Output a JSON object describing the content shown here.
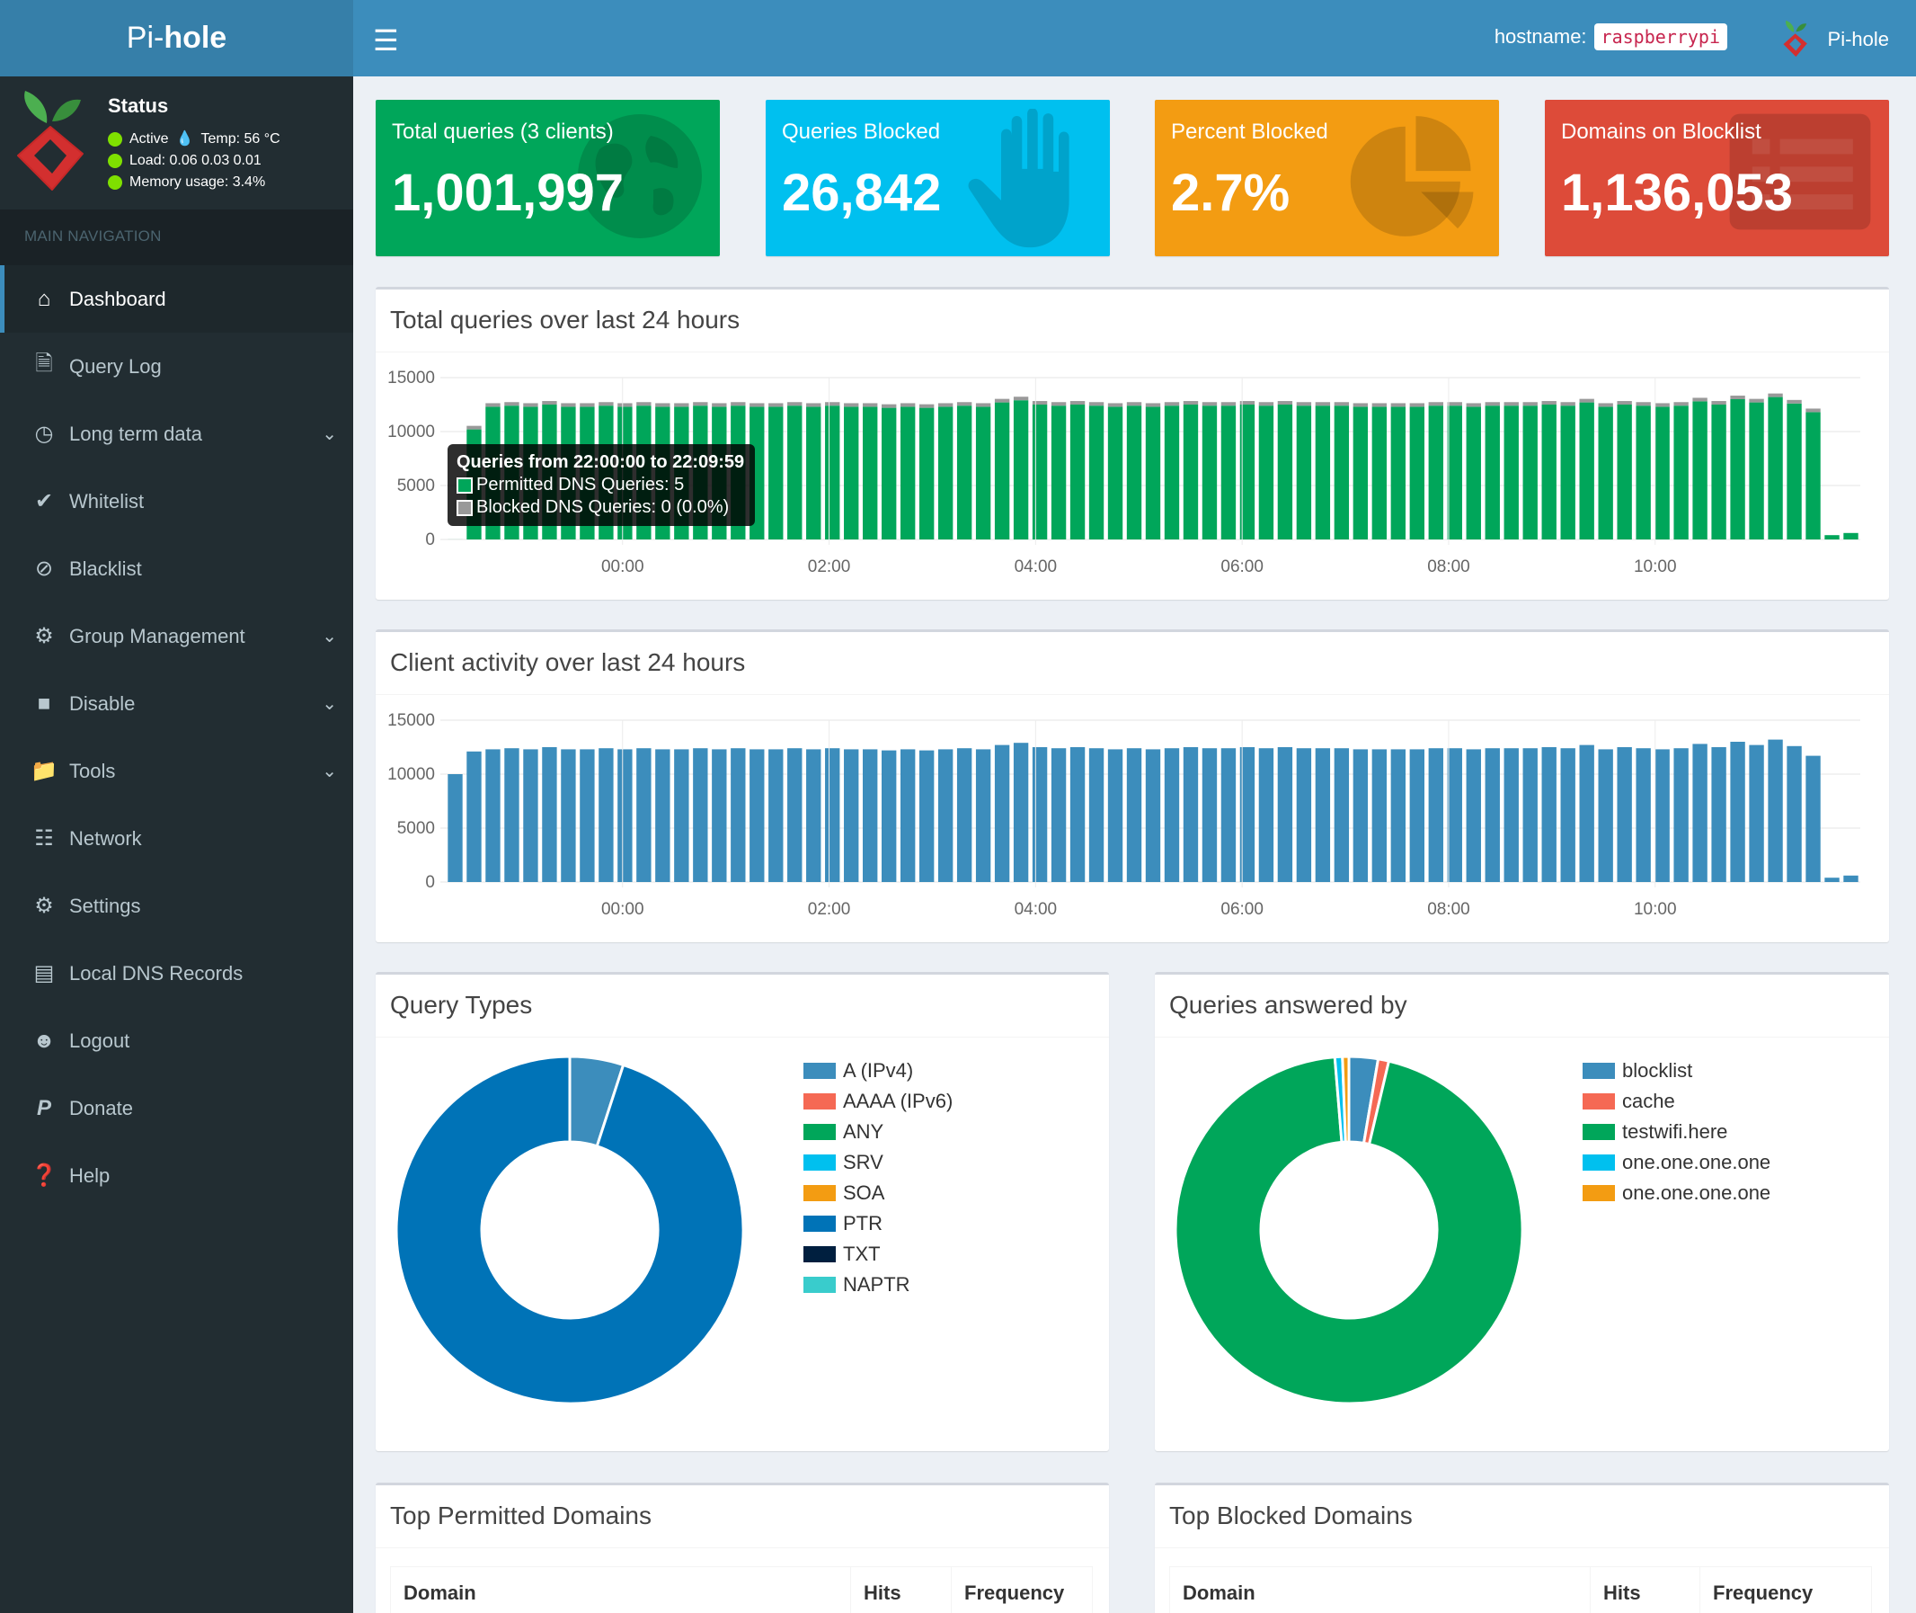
{
  "sidebar": {
    "logo_prefix": "Pi-",
    "logo_bold": "hole",
    "status": {
      "title": "Status",
      "active": "Active",
      "temp": "Temp: 56 °C",
      "load": "Load:  0.06  0.03  0.01",
      "memory": "Memory usage:  3.4%"
    },
    "nav_header": "MAIN NAVIGATION",
    "items": [
      {
        "label": "Dashboard",
        "icon": "home-icon"
      },
      {
        "label": "Query Log",
        "icon": "file-icon"
      },
      {
        "label": "Long term data",
        "icon": "clock-icon"
      },
      {
        "label": "Whitelist",
        "icon": "check-circle-icon"
      },
      {
        "label": "Blacklist",
        "icon": "ban-icon"
      },
      {
        "label": "Group Management",
        "icon": "users-cog-icon"
      },
      {
        "label": "Disable",
        "icon": "stop-icon"
      },
      {
        "label": "Tools",
        "icon": "folder-icon"
      },
      {
        "label": "Network",
        "icon": "network-icon"
      },
      {
        "label": "Settings",
        "icon": "cogs-icon"
      },
      {
        "label": "Local DNS Records",
        "icon": "address-book-icon"
      },
      {
        "label": "Logout",
        "icon": "user-times-icon"
      },
      {
        "label": "Donate",
        "icon": "paypal-icon"
      },
      {
        "label": "Help",
        "icon": "question-circle-icon"
      }
    ]
  },
  "header": {
    "hostname_label": "hostname:",
    "hostname_value": "raspberrypi",
    "brand": "Pi-hole"
  },
  "stats": {
    "total_queries": {
      "label": "Total queries (3 clients)",
      "value": "1,001,997",
      "color": "#00a65a"
    },
    "queries_blocked": {
      "label": "Queries Blocked",
      "value": "26,842",
      "color": "#00c0ef"
    },
    "percent_blocked": {
      "label": "Percent Blocked",
      "value": "2.7%",
      "color": "#f39c12"
    },
    "domains_blocklist": {
      "label": "Domains on Blocklist",
      "value": "1,136,053",
      "color": "#dd4b39"
    }
  },
  "charts": {
    "queries_title": "Total queries over last 24 hours",
    "clients_title": "Client activity over last 24 hours",
    "query_types_title": "Query Types",
    "answered_by_title": "Queries answered by"
  },
  "tooltip": {
    "title": "Queries from 22:00:00 to 22:09:59",
    "permitted": "Permitted DNS Queries: 5",
    "blocked": "Blocked DNS Queries: 0 (0.0%)"
  },
  "tables": {
    "permitted_title": "Top Permitted Domains",
    "blocked_title": "Top Blocked Domains",
    "col_domain": "Domain",
    "col_hits": "Hits",
    "col_frequency": "Frequency"
  },
  "chart_data": [
    {
      "type": "bar",
      "title": "Total queries over last 24 hours",
      "yticks": [
        "0",
        "5000",
        "10000",
        "15000"
      ],
      "ylim": [
        0,
        15000
      ],
      "xticks": [
        "00:00",
        "02:00",
        "04:00",
        "06:00",
        "08:00",
        "10:00"
      ],
      "series": [
        {
          "name": "Permitted DNS Queries",
          "color": "#00a65a",
          "values": [
            5,
            10200,
            12300,
            12400,
            12300,
            12500,
            12300,
            12300,
            12400,
            12300,
            12400,
            12300,
            12300,
            12400,
            12300,
            12400,
            12300,
            12300,
            12400,
            12300,
            12400,
            12300,
            12300,
            12200,
            12300,
            12200,
            12300,
            12400,
            12300,
            12700,
            12900,
            12500,
            12400,
            12500,
            12400,
            12300,
            12400,
            12300,
            12400,
            12500,
            12400,
            12400,
            12500,
            12400,
            12500,
            12400,
            12400,
            12400,
            12300,
            12300,
            12300,
            12300,
            12400,
            12400,
            12300,
            12400,
            12400,
            12400,
            12500,
            12400,
            12700,
            12300,
            12500,
            12400,
            12300,
            12400,
            12800,
            12500,
            13000,
            12700,
            13200,
            12600,
            11800,
            400,
            600
          ]
        },
        {
          "name": "Blocked DNS Queries",
          "color": "#999999",
          "values": [
            0,
            330,
            330,
            330,
            330,
            330,
            330,
            330,
            330,
            330,
            330,
            330,
            330,
            330,
            330,
            330,
            330,
            330,
            330,
            330,
            330,
            330,
            330,
            330,
            330,
            330,
            330,
            330,
            330,
            330,
            330,
            330,
            330,
            330,
            330,
            330,
            330,
            330,
            330,
            330,
            330,
            330,
            330,
            330,
            330,
            330,
            330,
            330,
            330,
            330,
            330,
            330,
            330,
            330,
            330,
            330,
            330,
            330,
            330,
            330,
            330,
            330,
            330,
            330,
            330,
            330,
            330,
            330,
            330,
            330,
            330,
            330,
            330,
            0,
            0
          ]
        }
      ]
    },
    {
      "type": "bar",
      "title": "Client activity over last 24 hours",
      "yticks": [
        "0",
        "5000",
        "10000",
        "15000"
      ],
      "ylim": [
        0,
        15000
      ],
      "xticks": [
        "00:00",
        "02:00",
        "04:00",
        "06:00",
        "08:00",
        "10:00"
      ],
      "series": [
        {
          "color": "#3c8dbc",
          "values": [
            10000,
            12100,
            12300,
            12400,
            12300,
            12500,
            12300,
            12300,
            12400,
            12300,
            12400,
            12300,
            12300,
            12400,
            12300,
            12400,
            12300,
            12300,
            12400,
            12300,
            12400,
            12300,
            12300,
            12200,
            12300,
            12200,
            12300,
            12400,
            12300,
            12700,
            12900,
            12500,
            12400,
            12500,
            12400,
            12300,
            12400,
            12300,
            12400,
            12500,
            12400,
            12400,
            12500,
            12400,
            12500,
            12400,
            12400,
            12400,
            12300,
            12300,
            12300,
            12300,
            12400,
            12400,
            12300,
            12400,
            12400,
            12400,
            12500,
            12400,
            12700,
            12300,
            12500,
            12400,
            12300,
            12400,
            12800,
            12500,
            13000,
            12700,
            13200,
            12600,
            11700,
            400,
            600
          ]
        }
      ]
    },
    {
      "type": "pie",
      "title": "Query Types",
      "categories": [
        "A (IPv4)",
        "AAAA (IPv6)",
        "ANY",
        "SRV",
        "SOA",
        "PTR",
        "TXT",
        "NAPTR"
      ],
      "colors": [
        "#3c8dbc",
        "#f56954",
        "#00a65a",
        "#00c0ef",
        "#f39c12",
        "#0073b7",
        "#001f3f",
        "#39cccc"
      ],
      "values": [
        5,
        0,
        0,
        0,
        0,
        95,
        0,
        0
      ]
    },
    {
      "type": "pie",
      "title": "Queries answered by",
      "categories": [
        "blocklist",
        "cache",
        "testwifi.here",
        "one.one.one.one",
        "one.one.one.one"
      ],
      "colors": [
        "#3c8dbc",
        "#f56954",
        "#00a65a",
        "#00c0ef",
        "#f39c12"
      ],
      "values": [
        2.7,
        1.0,
        95.0,
        0.7,
        0.6
      ]
    }
  ]
}
